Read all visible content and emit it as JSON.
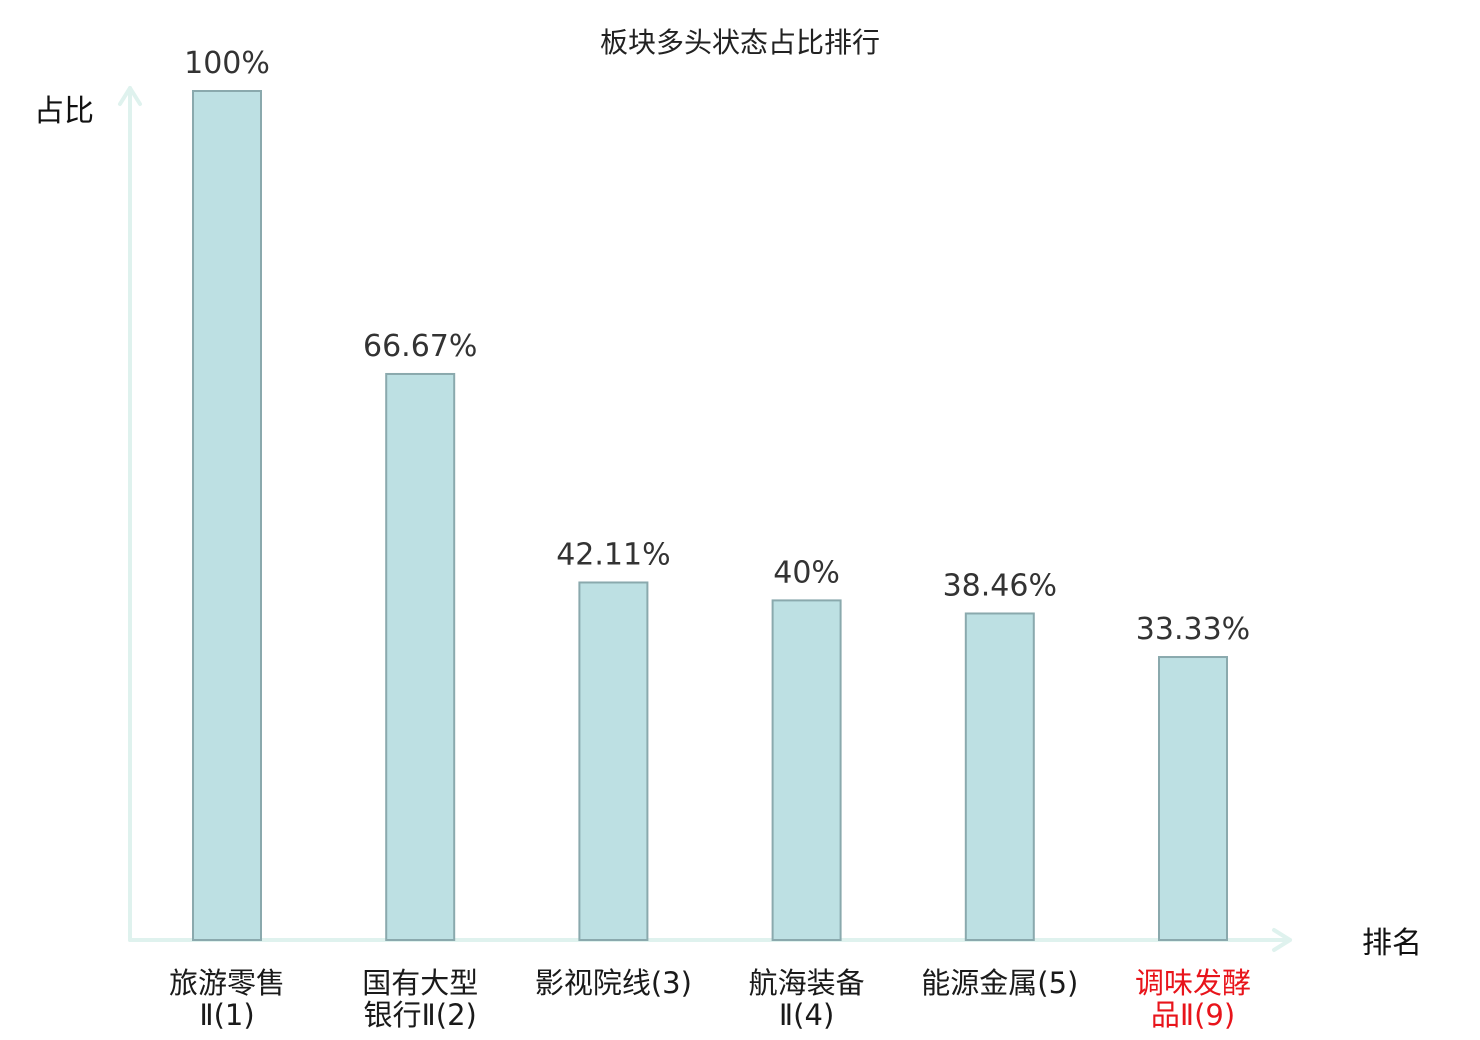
{
  "chart_data": {
    "type": "bar",
    "title": "板块多头状态占比排行",
    "ylabel": "占比",
    "xlabel": "排名",
    "ylim": [
      0,
      100
    ],
    "grid": false,
    "categories": [
      [
        "旅游零售",
        "Ⅱ(1)"
      ],
      [
        "国有大型",
        "银行Ⅱ(2)"
      ],
      [
        "影视院线(3)"
      ],
      [
        "航海装备",
        "Ⅱ(4)"
      ],
      [
        "能源金属(5)"
      ],
      [
        "调味发酵",
        "品Ⅱ(9)"
      ]
    ],
    "values": [
      100,
      66.67,
      42.11,
      40,
      38.46,
      33.33
    ],
    "value_labels": [
      "100%",
      "66.67%",
      "42.11%",
      "40%",
      "38.46%",
      "33.33%"
    ],
    "highlight_index": 5
  },
  "colors": {
    "bar_fill": "#bde0e3",
    "bar_stroke": "#8aa9ad",
    "axis": "#dff2ee",
    "highlight": "#e8141b"
  }
}
